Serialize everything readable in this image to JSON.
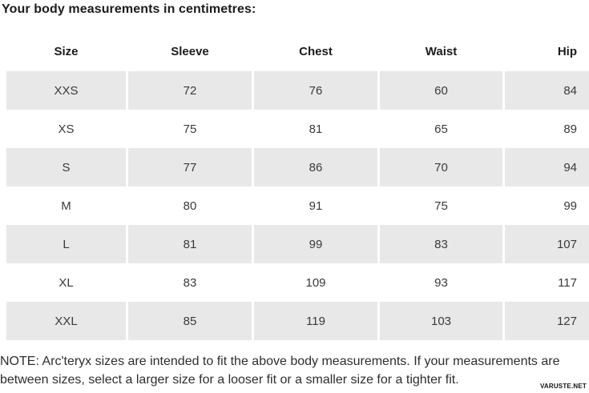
{
  "chart_data": {
    "type": "table",
    "title": "Your body measurements in centimetres:",
    "units": "centimetres",
    "columns": [
      "Size",
      "Sleeve",
      "Chest",
      "Waist",
      "Hip"
    ],
    "rows": [
      [
        "XXS",
        72,
        76,
        60,
        84
      ],
      [
        "XS",
        75,
        81,
        65,
        89
      ],
      [
        "S",
        77,
        86,
        70,
        94
      ],
      [
        "M",
        80,
        91,
        75,
        99
      ],
      [
        "L",
        81,
        99,
        83,
        107
      ],
      [
        "XL",
        83,
        109,
        93,
        117
      ],
      [
        "XXL",
        85,
        119,
        103,
        127
      ]
    ],
    "layout": {
      "striped_rows": "rows XXS, S, L, XXL shaded",
      "row_shade_color": "#e8e8e8",
      "alignment": "cells centered, last column right-aligned"
    }
  },
  "note": {
    "line1": "NOTE: Arc'teryx sizes are intended to fit the above body measurements. If your measurements are",
    "line2": "between sizes, select a larger size for a looser fit or a smaller size for a tighter fit."
  },
  "watermark": "VARUSTE.NET",
  "colors": {
    "heading_text": "#1c1c1c",
    "cell_text": "#3a3a3a",
    "note_text": "#2e2e2e",
    "row_shade": "#e8e8e8",
    "background": "#ffffff"
  }
}
